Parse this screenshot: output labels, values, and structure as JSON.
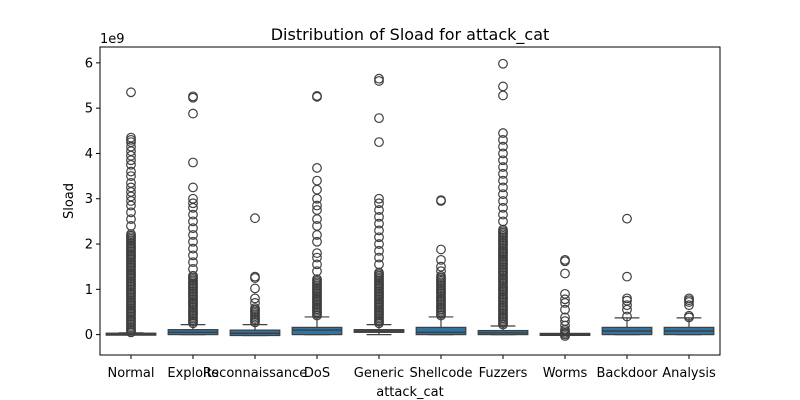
{
  "chart_data": {
    "type": "box",
    "title": "Distribution of Sload for attack_cat",
    "xlabel": "attack_cat",
    "ylabel": "Sload",
    "y_offset_label": "1e9",
    "y_scale_multiplier": 1000000000,
    "ylim": [
      -0.45,
      6.35
    ],
    "yticks": [
      0,
      1,
      2,
      3,
      4,
      5,
      6
    ],
    "box_color": "#3274a1",
    "grid": false,
    "categories": [
      "Normal",
      "Exploits",
      "Reconnaissance",
      "DoS",
      "Generic",
      "Shellcode",
      "Fuzzers",
      "Worms",
      "Backdoor",
      "Analysis"
    ],
    "boxes": [
      {
        "q1": 0.0,
        "median": 0.0,
        "q3": 0.02,
        "whisker_low": 0.0,
        "whisker_high": 0.04,
        "outliers_dense_from": 0.05,
        "outliers_dense_to": 2.25,
        "outliers": [
          2.4,
          2.55,
          2.7,
          2.85,
          2.95,
          3.05,
          3.15,
          3.25,
          3.35,
          3.5,
          3.6,
          3.75,
          3.85,
          3.95,
          4.05,
          4.15,
          4.25,
          4.3,
          4.35,
          5.35
        ]
      },
      {
        "q1": 0.0,
        "median": 0.05,
        "q3": 0.11,
        "whisker_low": 0.0,
        "whisker_high": 0.22,
        "outliers_dense_from": 0.25,
        "outliers_dense_to": 1.3,
        "outliers": [
          1.45,
          1.6,
          1.75,
          1.9,
          2.05,
          2.2,
          2.35,
          2.5,
          2.65,
          2.8,
          2.9,
          3.0,
          3.25,
          3.8,
          4.88,
          5.23,
          5.26
        ]
      },
      {
        "q1": -0.02,
        "median": 0.03,
        "q3": 0.1,
        "whisker_low": -0.02,
        "whisker_high": 0.22,
        "outliers_dense_from": 0.27,
        "outliers_dense_to": 0.6,
        "outliers": [
          0.7,
          0.8,
          1.02,
          1.25,
          1.28,
          2.57
        ]
      },
      {
        "q1": 0.0,
        "median": 0.1,
        "q3": 0.16,
        "whisker_low": 0.0,
        "whisker_high": 0.39,
        "outliers_dense_from": 0.42,
        "outliers_dense_to": 1.25,
        "outliers": [
          1.4,
          1.55,
          1.7,
          1.8,
          2.05,
          2.2,
          2.4,
          2.55,
          2.75,
          2.85,
          3.0,
          3.2,
          3.4,
          3.68,
          5.25,
          5.27
        ]
      },
      {
        "q1": 0.05,
        "median": 0.08,
        "q3": 0.11,
        "whisker_low": 0.0,
        "whisker_high": 0.22,
        "outliers_dense_from": 0.25,
        "outliers_dense_to": 1.4,
        "outliers": [
          1.55,
          1.7,
          1.85,
          2.0,
          2.15,
          2.3,
          2.45,
          2.6,
          2.75,
          2.9,
          3.0,
          4.25,
          4.78,
          5.6,
          5.65
        ]
      },
      {
        "q1": 0.0,
        "median": 0.05,
        "q3": 0.16,
        "whisker_low": 0.0,
        "whisker_high": 0.39,
        "outliers_dense_from": 0.42,
        "outliers_dense_to": 1.3,
        "outliers": [
          1.4,
          1.5,
          1.65,
          1.88,
          2.95,
          2.97
        ]
      },
      {
        "q1": 0.0,
        "median": 0.04,
        "q3": 0.09,
        "whisker_low": 0.0,
        "whisker_high": 0.19,
        "outliers_dense_from": 0.22,
        "outliers_dense_to": 2.35,
        "outliers": [
          2.5,
          2.65,
          2.8,
          2.95,
          3.1,
          3.25,
          3.4,
          3.55,
          3.7,
          3.85,
          4.0,
          4.15,
          4.3,
          4.45,
          5.28,
          5.48,
          5.98
        ]
      },
      {
        "q1": 0.0,
        "median": 0.0,
        "q3": 0.01,
        "whisker_low": 0.0,
        "whisker_high": 0.02,
        "outliers_dense_from": -0.03,
        "outliers_dense_to": 0.12,
        "outliers": [
          0.2,
          0.3,
          0.38,
          0.55,
          0.7,
          0.78,
          0.9,
          1.35,
          1.62,
          1.65
        ]
      },
      {
        "q1": 0.0,
        "median": 0.08,
        "q3": 0.16,
        "whisker_low": 0.0,
        "whisker_high": 0.37,
        "outliers_dense_from": 0.4,
        "outliers_dense_to": 0.42,
        "outliers": [
          0.55,
          0.65,
          0.75,
          0.8,
          1.28,
          2.56
        ]
      },
      {
        "q1": 0.0,
        "median": 0.08,
        "q3": 0.16,
        "whisker_low": 0.0,
        "whisker_high": 0.37,
        "outliers_dense_from": 0.38,
        "outliers_dense_to": 0.42,
        "outliers": [
          0.65,
          0.72,
          0.76,
          0.8
        ]
      }
    ]
  }
}
